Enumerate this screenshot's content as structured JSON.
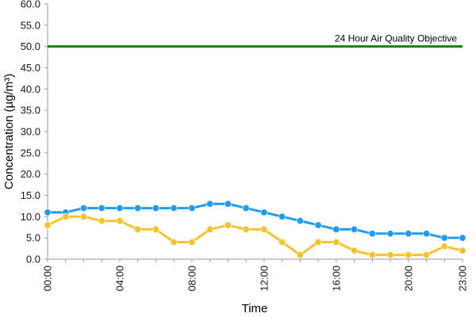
{
  "chart_data": {
    "type": "line",
    "title": "",
    "xlabel": "Time",
    "ylabel": "Concentration (µg/m³)",
    "ylim": [
      0,
      60
    ],
    "yticks": [
      "0.0",
      "5.0",
      "10.0",
      "15.0",
      "20.0",
      "25.0",
      "30.0",
      "35.0",
      "40.0",
      "45.0",
      "50.0",
      "55.0",
      "60.0"
    ],
    "xticks": [
      "00:00",
      "04:00",
      "08:00",
      "12:00",
      "16:00",
      "20:00",
      "23:00"
    ],
    "xtick_positions": [
      0,
      4,
      8,
      12,
      16,
      20,
      23
    ],
    "grid": false,
    "x": [
      0,
      1,
      2,
      3,
      4,
      5,
      6,
      7,
      8,
      9,
      10,
      11,
      12,
      13,
      14,
      15,
      16,
      17,
      18,
      19,
      20,
      21,
      22,
      23
    ],
    "series": [
      {
        "color": "#1f9cf0",
        "values": [
          11,
          11,
          12,
          12,
          12,
          12,
          12,
          12,
          12,
          13,
          13,
          12,
          11,
          10,
          9,
          8,
          7,
          7,
          6,
          6,
          6,
          6,
          5,
          5
        ]
      },
      {
        "color": "#f2c530",
        "values": [
          8,
          10,
          10,
          9,
          9,
          7,
          7,
          4,
          4,
          7,
          8,
          7,
          7,
          4,
          1,
          4,
          4,
          2,
          1,
          1,
          1,
          1,
          3,
          2
        ]
      }
    ],
    "reference_line": {
      "value": 50,
      "label": "24 Hour Air Quality Objective",
      "color": "#1a7d1a"
    }
  }
}
